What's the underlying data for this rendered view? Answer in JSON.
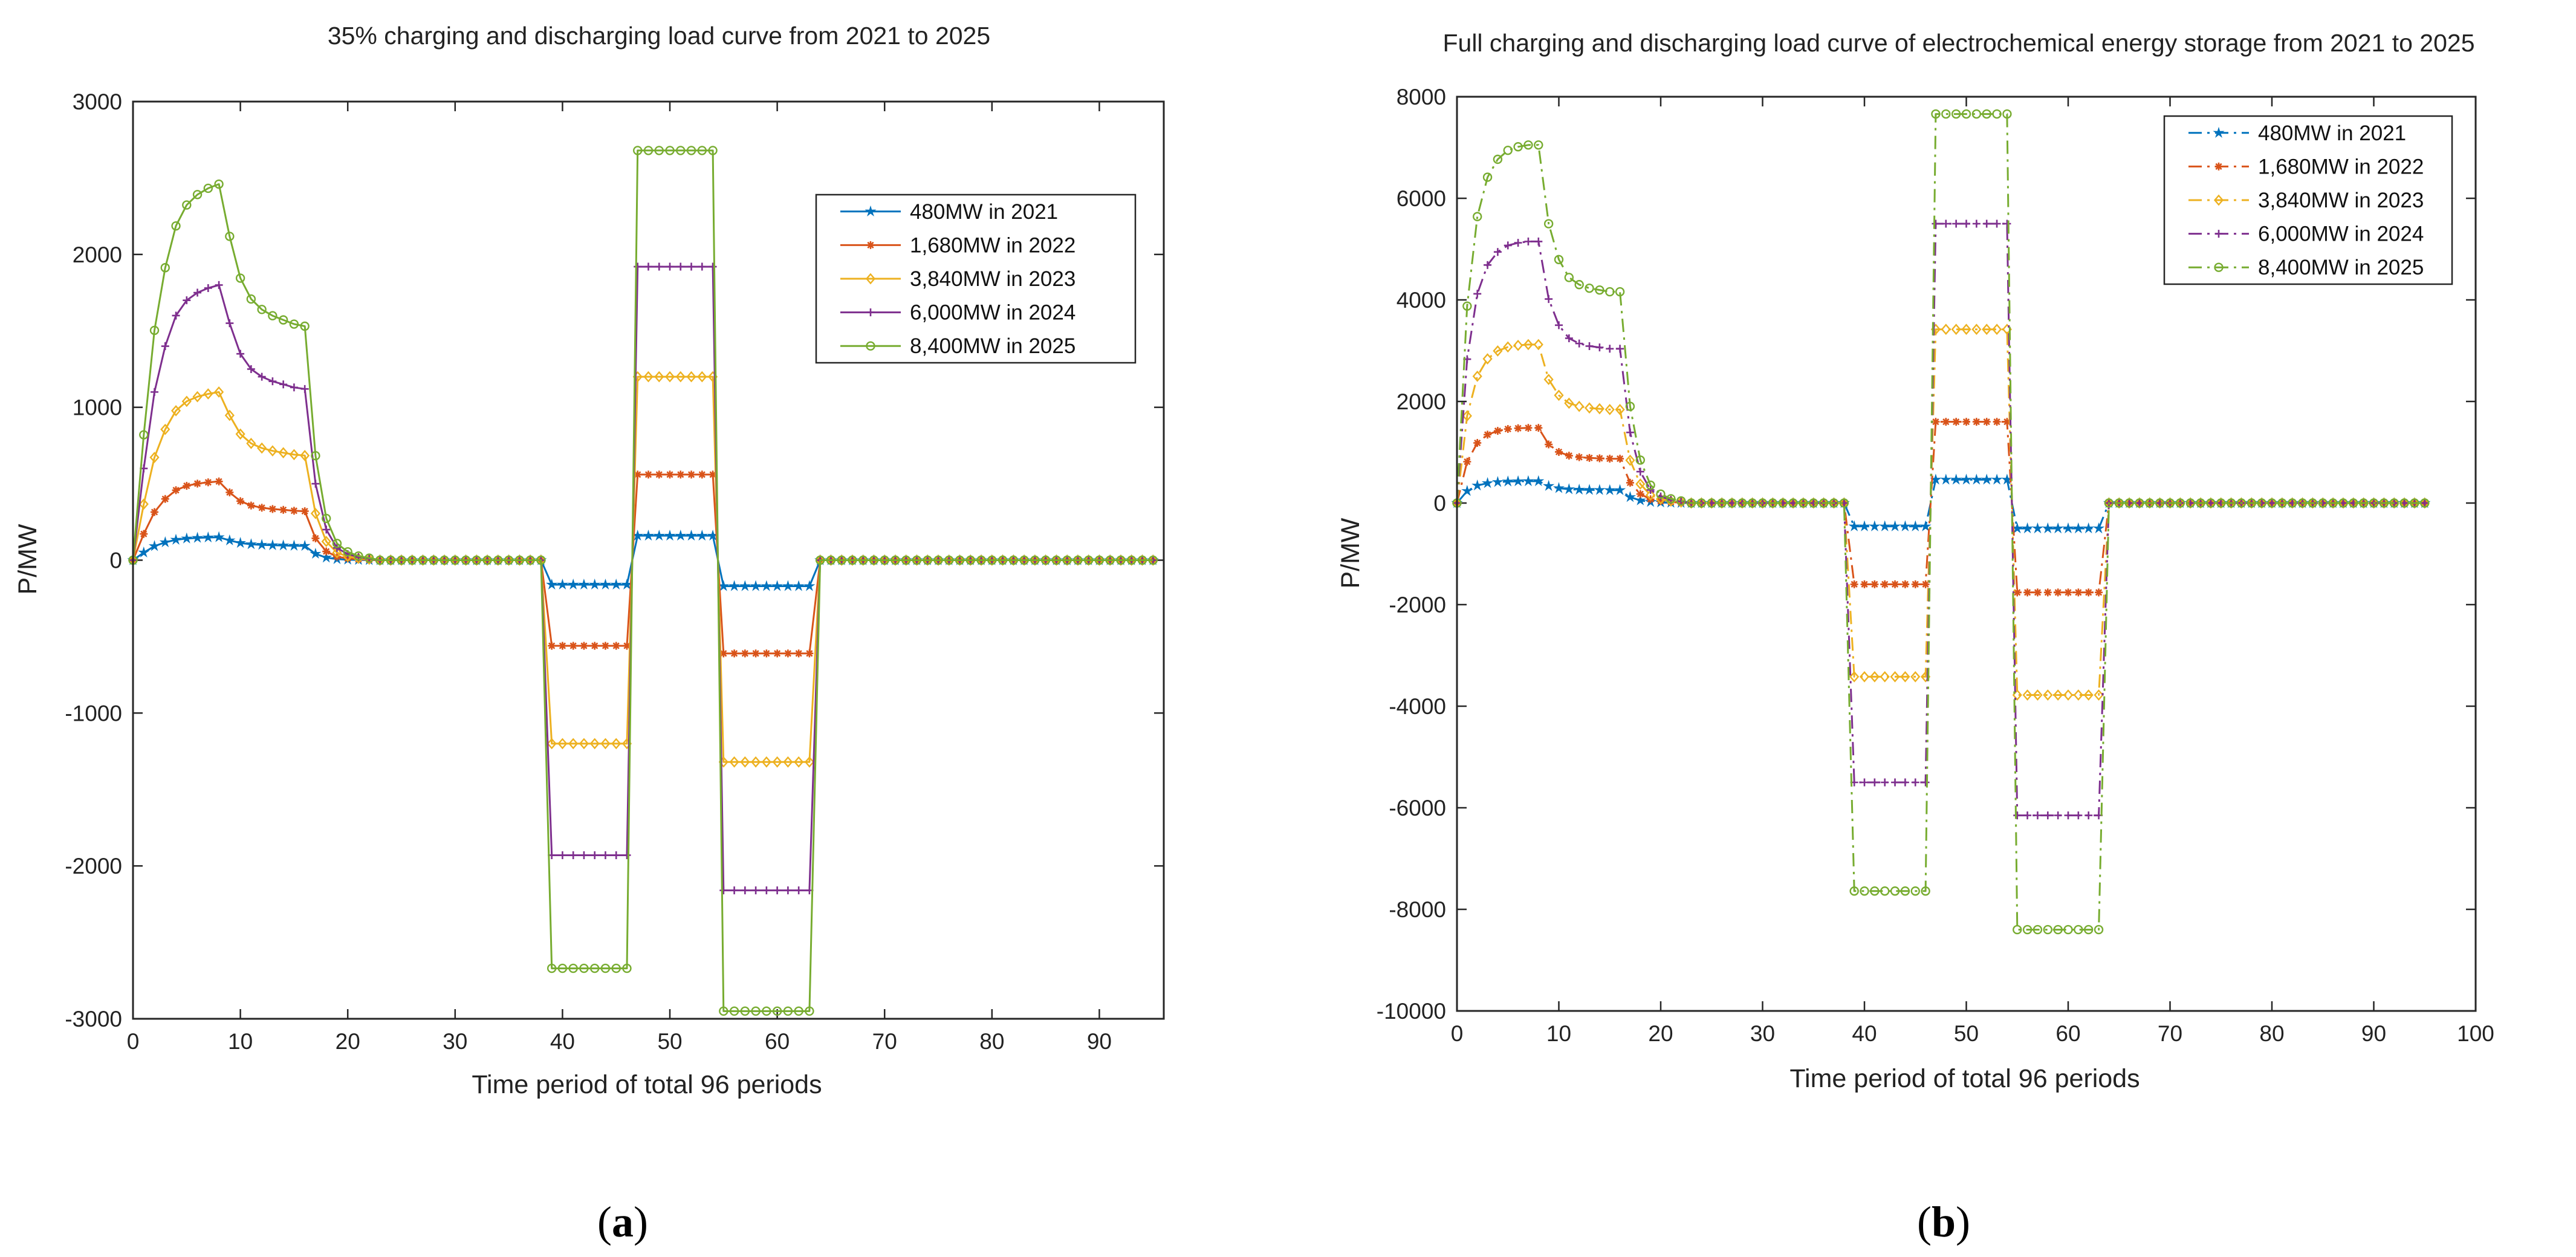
{
  "chart_data": [
    {
      "id": "a",
      "type": "line",
      "panel_label": "a",
      "title": "35% charging and discharging load curve from 2021 to 2025",
      "xlabel": "Time period of total 96 periods",
      "ylabel": "P/MW",
      "xlim": [
        0,
        96
      ],
      "ylim": [
        -3000,
        3000
      ],
      "xticks": [
        0,
        10,
        20,
        30,
        40,
        50,
        60,
        70,
        80,
        90
      ],
      "yticks": [
        -3000,
        -2000,
        -1000,
        0,
        1000,
        2000,
        3000
      ],
      "line_style": "solid",
      "legend_position": "top-right",
      "series_profile": {
        "shape": [
          0,
          0.06,
          0.11,
          0.14,
          0.16,
          0.17,
          0.175,
          0.178,
          0.18,
          0.155,
          0.135,
          0.125,
          0.12,
          0.117,
          0.115,
          0.113,
          0.112,
          0.05,
          0.02,
          0.008,
          0.004,
          0.002,
          0.001
        ],
        "negative_block_1": {
          "from": 39,
          "to": 46
        },
        "positive_block": {
          "from": 47,
          "to": 54
        },
        "negative_block_2": {
          "from": 55,
          "to": 63
        },
        "last_point": 95
      },
      "series": [
        {
          "name": "480MW in 2021",
          "color": "#0072BD",
          "marker": "star",
          "peak": 150,
          "block_neg_1": -160,
          "block_pos": 160,
          "block_neg_2": -170
        },
        {
          "name": "1,680MW in 2022",
          "color": "#D95319",
          "marker": "asterisk",
          "peak": 515,
          "block_neg_1": -560,
          "block_pos": 560,
          "block_neg_2": -610
        },
        {
          "name": "3,840MW in 2023",
          "color": "#EDB120",
          "marker": "diamond",
          "peak": 1100,
          "block_neg_1": -1200,
          "block_pos": 1200,
          "block_neg_2": -1320
        },
        {
          "name": "6,000MW in 2024",
          "color": "#7E2F8E",
          "marker": "plus",
          "peak": 1800,
          "block_neg_1": -1930,
          "block_pos": 1920,
          "block_neg_2": -2160
        },
        {
          "name": "8,400MW in 2025",
          "color": "#77AC30",
          "marker": "circle",
          "peak": 2460,
          "block_neg_1": -2670,
          "block_pos": 2680,
          "block_neg_2": -2950
        }
      ]
    },
    {
      "id": "b",
      "type": "line",
      "panel_label": "b",
      "title": "Full charging and discharging load curve of electrochemical energy storage from 2021 to 2025",
      "xlabel": "Time period of total 96 periods",
      "ylabel": "P/MW",
      "xlim": [
        0,
        100
      ],
      "ylim": [
        -10000,
        8000
      ],
      "xticks": [
        0,
        10,
        20,
        30,
        40,
        50,
        60,
        70,
        80,
        90,
        100
      ],
      "yticks": [
        -10000,
        -8000,
        -6000,
        -4000,
        -2000,
        0,
        2000,
        4000,
        6000,
        8000
      ],
      "line_style": "dashdot",
      "legend_position": "top-right",
      "series_profile": {
        "shape": [
          0,
          0.55,
          0.8,
          0.91,
          0.96,
          0.985,
          0.995,
          1.0,
          1.0,
          0.78,
          0.68,
          0.63,
          0.61,
          0.6,
          0.595,
          0.59,
          0.59,
          0.27,
          0.12,
          0.05,
          0.025,
          0.012,
          0.006
        ],
        "negative_block_1": {
          "from": 39,
          "to": 46
        },
        "positive_block": {
          "from": 47,
          "to": 54
        },
        "negative_block_2": {
          "from": 55,
          "to": 63
        },
        "last_point": 95
      },
      "series": [
        {
          "name": "480MW in 2021",
          "color": "#0072BD",
          "marker": "star",
          "peak": 430,
          "block_neg_1": -460,
          "block_pos": 460,
          "block_neg_2": -500
        },
        {
          "name": "1,680MW in 2022",
          "color": "#D95319",
          "marker": "asterisk",
          "peak": 1480,
          "block_neg_1": -1600,
          "block_pos": 1600,
          "block_neg_2": -1760
        },
        {
          "name": "3,840MW in 2023",
          "color": "#EDB120",
          "marker": "diamond",
          "peak": 3120,
          "block_neg_1": -3420,
          "block_pos": 3420,
          "block_neg_2": -3780
        },
        {
          "name": "6,000MW in 2024",
          "color": "#7E2F8E",
          "marker": "plus",
          "peak": 5150,
          "block_neg_1": -5500,
          "block_pos": 5500,
          "block_neg_2": -6150
        },
        {
          "name": "8,400MW in 2025",
          "color": "#77AC30",
          "marker": "circle",
          "peak": 7050,
          "block_neg_1": -7640,
          "block_pos": 7660,
          "block_neg_2": -8400
        }
      ]
    }
  ]
}
